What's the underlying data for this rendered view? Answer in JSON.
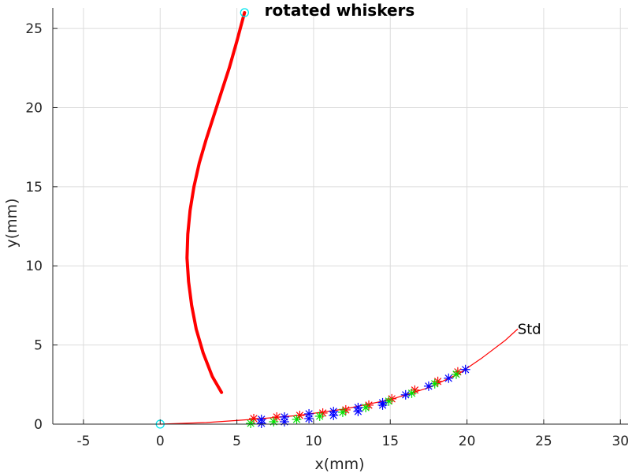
{
  "chart_data": {
    "type": "line",
    "title": "rotated whiskers",
    "xlabel": "x(mm)",
    "ylabel": "y(mm)",
    "xlim": [
      -7,
      30.5
    ],
    "ylim": [
      0,
      26.3
    ],
    "xticks": [
      "-5",
      "0",
      "5",
      "10",
      "15",
      "20",
      "25",
      "30"
    ],
    "yticks": [
      "0",
      "5",
      "10",
      "15",
      "20",
      "25"
    ],
    "grid": true,
    "annotation": {
      "text": "Std",
      "x": 23.3,
      "y": 6.0
    },
    "series": [
      {
        "style": "thick-line",
        "color": "#ff0000",
        "x": [
          4.0,
          3.4,
          2.8,
          2.35,
          2.05,
          1.85,
          1.75,
          1.8,
          1.95,
          2.2,
          2.55,
          3.0,
          3.5,
          4.0,
          4.5,
          5.0,
          5.5
        ],
        "y": [
          2.0,
          3.0,
          4.5,
          6.0,
          7.5,
          9.0,
          10.5,
          12.0,
          13.5,
          15.0,
          16.5,
          18.0,
          19.5,
          21.0,
          22.5,
          24.2,
          26.0
        ]
      },
      {
        "style": "thin-line",
        "color": "#ff0000",
        "x": [
          0,
          3,
          6,
          9,
          12,
          15,
          17.5,
          19.5,
          21,
          22.5,
          23.3
        ],
        "y": [
          0,
          0.1,
          0.3,
          0.55,
          0.95,
          1.55,
          2.3,
          3.2,
          4.2,
          5.3,
          6.0
        ]
      },
      {
        "style": "markers",
        "color": "#ff0000",
        "x": [
          6.1,
          7.6,
          9.1,
          10.6,
          12.1,
          13.6,
          15.1,
          16.6,
          18.1,
          19.4
        ],
        "y": [
          0.35,
          0.45,
          0.55,
          0.7,
          0.9,
          1.2,
          1.6,
          2.15,
          2.7,
          3.3
        ]
      },
      {
        "style": "markers",
        "color": "#00e000",
        "x": [
          5.9,
          7.4,
          8.9,
          10.4,
          11.9,
          13.4,
          14.9,
          16.4,
          17.9,
          19.3
        ],
        "y": [
          0.05,
          0.15,
          0.3,
          0.5,
          0.75,
          1.05,
          1.45,
          1.95,
          2.55,
          3.15
        ]
      },
      {
        "style": "markers",
        "color": "#0000ff",
        "x": [
          6.6,
          8.1,
          9.7,
          11.3,
          12.9,
          14.5,
          16.0,
          17.5,
          18.8,
          19.9
        ],
        "y": [
          0.3,
          0.45,
          0.65,
          0.8,
          1.05,
          1.35,
          1.85,
          2.4,
          2.9,
          3.45
        ]
      },
      {
        "style": "markers",
        "color": "#0000ff",
        "x": [
          6.6,
          8.1,
          9.7,
          11.3,
          12.9,
          14.5
        ],
        "y": [
          0.05,
          0.15,
          0.35,
          0.55,
          0.8,
          1.2
        ]
      },
      {
        "style": "circles",
        "color": "#00e5ee",
        "x": [
          0,
          5.5
        ],
        "y": [
          0,
          26.0
        ]
      }
    ]
  }
}
